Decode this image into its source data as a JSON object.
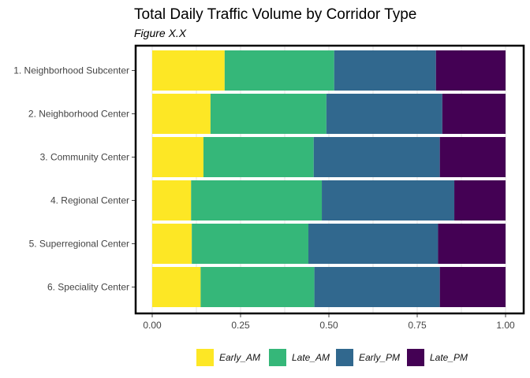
{
  "chart_data": {
    "type": "bar",
    "orientation": "horizontal",
    "stacked": "proportional",
    "title": "Total Daily Traffic Volume by Corridor Type",
    "subtitle": "Figure X.X",
    "xlabel": "",
    "ylabel": "",
    "xlim": [
      0,
      1
    ],
    "x_ticks": [
      "0.00",
      "0.25",
      "0.50",
      "0.75",
      "1.00"
    ],
    "x_tick_values": [
      0,
      0.25,
      0.5,
      0.75,
      1
    ],
    "grid": true,
    "legend_position": "bottom",
    "categories": [
      "1. Neighborhood Subcenter",
      "2. Neighborhood Center",
      "3. Community Center",
      "4. Regional Center",
      "5. Superregional Center",
      "6. Speciality Center"
    ],
    "series": [
      {
        "name": "Early_AM",
        "color": "#FDE725",
        "values": [
          0.205,
          0.165,
          0.145,
          0.11,
          0.112,
          0.137
        ]
      },
      {
        "name": "Late_AM",
        "color": "#35B779",
        "values": [
          0.31,
          0.328,
          0.312,
          0.37,
          0.33,
          0.322
        ]
      },
      {
        "name": "Early_PM",
        "color": "#31688E",
        "values": [
          0.288,
          0.328,
          0.357,
          0.375,
          0.367,
          0.355
        ]
      },
      {
        "name": "Late_PM",
        "color": "#440154",
        "values": [
          0.197,
          0.179,
          0.186,
          0.145,
          0.191,
          0.186
        ]
      }
    ]
  }
}
